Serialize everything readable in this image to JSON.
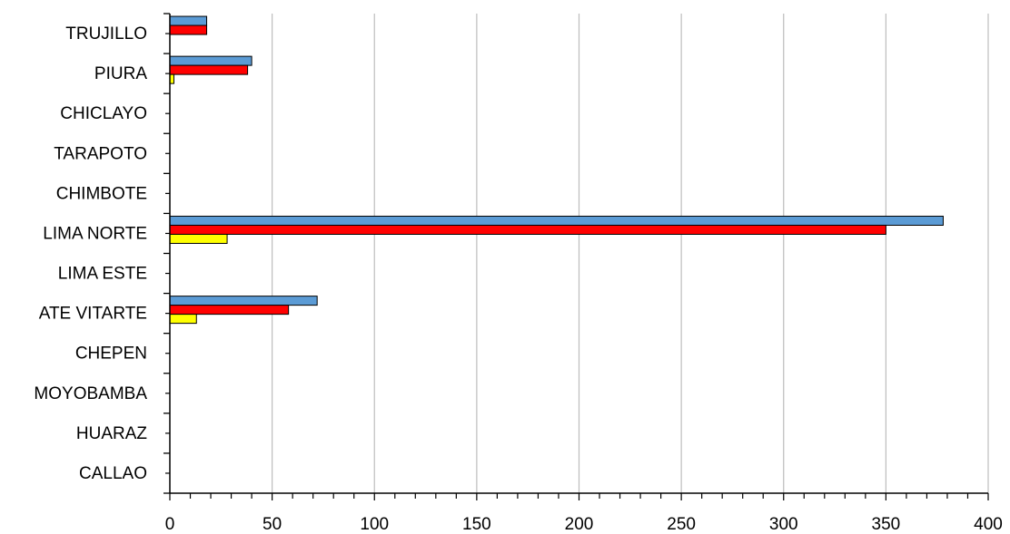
{
  "chart_data": {
    "type": "bar",
    "orientation": "horizontal",
    "categories": [
      "TRUJILLO",
      "PIURA",
      "CHICLAYO",
      "TARAPOTO",
      "CHIMBOTE",
      "LIMA NORTE",
      "LIMA ESTE",
      "ATE VITARTE",
      "CHEPEN",
      "MOYOBAMBA",
      "HUARAZ",
      "CALLAO"
    ],
    "series": [
      {
        "color": "#5b9bd5",
        "values": [
          18,
          40,
          0,
          0,
          0,
          378,
          0,
          72,
          0,
          0,
          0,
          0
        ]
      },
      {
        "color": "#ff0000",
        "values": [
          18,
          38,
          0,
          0,
          0,
          350,
          0,
          58,
          0,
          0,
          0,
          0
        ]
      },
      {
        "color": "#ffff00",
        "values": [
          0,
          2,
          0,
          0,
          0,
          28,
          0,
          13,
          0,
          0,
          0,
          0
        ]
      }
    ],
    "xlim": [
      0,
      400
    ],
    "x_ticks": [
      0,
      50,
      100,
      150,
      200,
      250,
      300,
      350,
      400
    ],
    "title": "",
    "xlabel": "",
    "ylabel": "",
    "grid": "vertical",
    "legend": "none"
  }
}
